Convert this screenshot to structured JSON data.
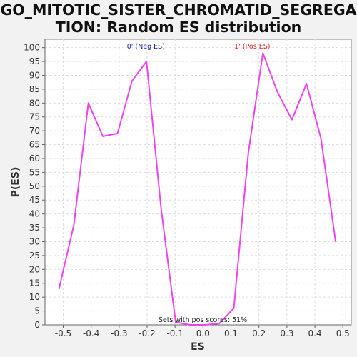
{
  "title_line1": "GO_MITOTIC_SISTER_CHROMATID_SEGREGA",
  "title_line2": "TION: Random ES distribution",
  "chart_data": {
    "type": "line",
    "xlabel": "ES",
    "ylabel": "P(ES)",
    "xlim": [
      -0.565,
      0.53
    ],
    "ylim": [
      0,
      103
    ],
    "xticks": [
      -0.5,
      -0.4,
      -0.3,
      -0.2,
      -0.1,
      0.0,
      0.1,
      0.2,
      0.3,
      0.4,
      0.5
    ],
    "xtick_labels": [
      "-0.5",
      "-0.4",
      "-0.3",
      "-0.2",
      "-0.1",
      "0.0",
      "0.1",
      "0.2",
      "0.3",
      "0.4",
      "0.5"
    ],
    "yticks": [
      0,
      5,
      10,
      15,
      20,
      25,
      30,
      35,
      40,
      45,
      50,
      55,
      60,
      65,
      70,
      75,
      80,
      85,
      90,
      95,
      100
    ],
    "grid": true,
    "series": [
      {
        "color": "#ee44ee",
        "x": [
          -0.515,
          -0.462,
          -0.41,
          -0.358,
          -0.306,
          -0.254,
          -0.202,
          -0.15,
          -0.098,
          -0.046,
          0.006,
          0.058,
          0.11,
          0.162,
          0.214,
          0.266,
          0.318,
          0.37,
          0.422,
          0.474
        ],
        "y": [
          13,
          36,
          80,
          68,
          69,
          88,
          95,
          42,
          1,
          0,
          0,
          0.5,
          6,
          62,
          98,
          84,
          74,
          87,
          67,
          30
        ]
      }
    ],
    "annotations": {
      "neg": {
        "text": "'0' (Neg ES)",
        "color": "#2222bb"
      },
      "pos": {
        "text": "'1' (Pos ES)",
        "color": "#dd2222"
      },
      "footer": {
        "text": "Sets with pos scores: 51%",
        "color": "#222222"
      }
    }
  }
}
